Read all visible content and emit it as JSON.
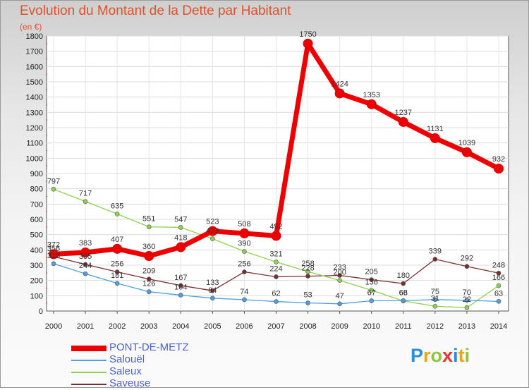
{
  "title": "Evolution du Montant de la Dette par Habitant",
  "subtitle": "(en €)",
  "logo": {
    "letters": [
      "P",
      "r",
      "o",
      "x",
      "i",
      "t",
      "i"
    ],
    "colors": [
      "#2a8fd6",
      "#f2a314",
      "#8cc63f",
      "#e8322f",
      "#2a8fd6",
      "#f2a314",
      "#8cc63f"
    ]
  },
  "chart_data": {
    "type": "line",
    "x": [
      "2000",
      "2001",
      "2002",
      "2003",
      "2004",
      "2005",
      "2006",
      "2007",
      "2008",
      "2009",
      "2010",
      "2011",
      "2012",
      "2013",
      "2014"
    ],
    "ylim": [
      0,
      1800
    ],
    "yticks": [
      "0",
      "100",
      "200",
      "300",
      "400",
      "500",
      "600",
      "700",
      "800",
      "900",
      "1000",
      "1100",
      "1200",
      "1300",
      "1400",
      "1500",
      "1600",
      "1700",
      "1800"
    ],
    "grid": true,
    "legend_position": "bottom-left",
    "series": [
      {
        "name": "PONT-DE-METZ",
        "color": "#ee0000",
        "thick": true,
        "values": [
          372,
          383,
          407,
          360,
          418,
          523,
          508,
          492,
          1750,
          1424,
          1353,
          1237,
          1131,
          1039,
          932
        ],
        "labels": [
          "372",
          "383",
          "407",
          "360",
          "418",
          "523",
          "508",
          "492",
          "1750",
          "1424",
          "1353",
          "1237",
          "1131",
          "1039",
          "932"
        ]
      },
      {
        "name": "Salouël",
        "color": "#4f9ee0",
        "thick": false,
        "values": [
          310,
          244,
          181,
          126,
          104,
          84,
          74,
          62,
          53,
          47,
          67,
          68,
          75,
          70,
          63
        ],
        "labels": [
          "310",
          "244",
          "181",
          "126",
          "104",
          "84",
          "74",
          "62",
          "53",
          "47",
          "67",
          "68",
          "75",
          "70",
          "63"
        ]
      },
      {
        "name": "Saleux",
        "color": "#8fd14f",
        "thick": false,
        "values": [
          797,
          717,
          635,
          551,
          547,
          473,
          390,
          321,
          258,
          200,
          136,
          66,
          31,
          22,
          166
        ],
        "labels": [
          "797",
          "717",
          "635",
          "551",
          "547",
          "473",
          "390",
          "321",
          "258",
          "200",
          "136",
          "66",
          "31",
          "22",
          "166"
        ]
      },
      {
        "name": "Saveuse",
        "color": "#7a3030",
        "thick": false,
        "values": [
          356,
          305,
          256,
          209,
          167,
          133,
          256,
          224,
          228,
          233,
          205,
          180,
          339,
          292,
          248
        ],
        "labels": [
          "356",
          "305",
          "256",
          "209",
          "167",
          "133",
          "256",
          "224",
          "228",
          "233",
          "205",
          "180",
          "339",
          "292",
          "248"
        ]
      }
    ]
  }
}
